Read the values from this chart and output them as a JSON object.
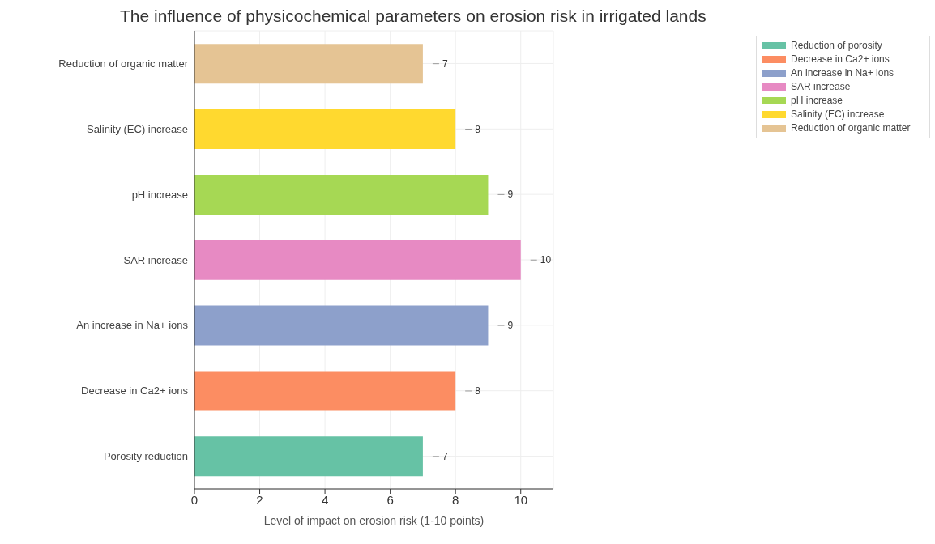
{
  "chart_data": {
    "type": "bar",
    "orientation": "horizontal",
    "stacked": true,
    "title": "The influence of physicochemical parameters on erosion risk in irrigated lands",
    "xlabel": "Level of impact on erosion risk (1-10 points)",
    "categories": [
      "Reduction of organic matter",
      "Salinity (EC) increase",
      "pH increase",
      "SAR increase",
      "An increase in Na+ ions",
      "Decrease in Ca2+ ions",
      "Porosity reduction"
    ],
    "series": [
      {
        "name": "Reduction of porosity",
        "color": "#66c2a5",
        "values": [
          null,
          null,
          null,
          null,
          null,
          null,
          7
        ]
      },
      {
        "name": "Decrease in Ca2+ ions",
        "color": "#fc8d62",
        "values": [
          null,
          null,
          null,
          null,
          null,
          8,
          null
        ]
      },
      {
        "name": "An increase in Na+ ions",
        "color": "#8da0cb",
        "values": [
          null,
          null,
          null,
          null,
          9,
          null,
          null
        ]
      },
      {
        "name": "SAR increase",
        "color": "#e78ac3",
        "values": [
          null,
          null,
          null,
          10,
          null,
          null,
          null
        ]
      },
      {
        "name": "pH increase",
        "color": "#a6d854",
        "values": [
          null,
          null,
          9,
          null,
          null,
          null,
          null
        ]
      },
      {
        "name": "Salinity (EC) increase",
        "color": "#ffd92f",
        "values": [
          null,
          8,
          null,
          null,
          null,
          null,
          null
        ]
      },
      {
        "name": "Reduction of organic matter",
        "color": "#e5c494",
        "values": [
          7,
          null,
          null,
          null,
          null,
          null,
          null
        ]
      }
    ],
    "xlim": [
      0,
      11
    ],
    "xticks": [
      0,
      2,
      4,
      6,
      8,
      10
    ],
    "grid": true,
    "legend": "top right",
    "data_labels": true
  }
}
